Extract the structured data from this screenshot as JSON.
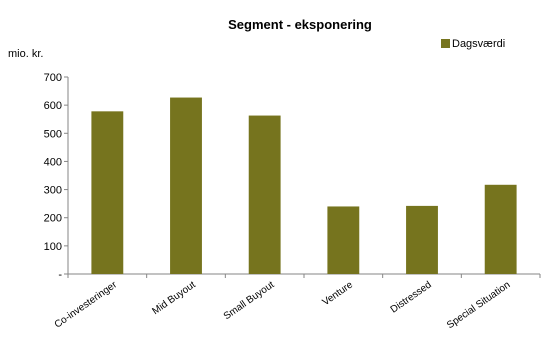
{
  "chart_data": {
    "type": "bar",
    "title": "Segment - eksponering",
    "ylabel": "mio. kr.",
    "xlabel": "",
    "ylim": [
      0,
      700
    ],
    "yticks": [
      0,
      100,
      200,
      300,
      400,
      500,
      600,
      700
    ],
    "ytick_labels": [
      "-",
      "100",
      "200",
      "300",
      "400",
      "500",
      "600",
      "700"
    ],
    "grid": false,
    "legend_position": "top-right",
    "categories": [
      "Co-investeringer",
      "Mid Buyout",
      "Small Buyout",
      "Venture",
      "Distressed",
      "Special Situation"
    ],
    "series": [
      {
        "name": "Dagsværdi",
        "color": "#76741e",
        "values": [
          578,
          627,
          563,
          240,
          242,
          317
        ]
      }
    ]
  }
}
